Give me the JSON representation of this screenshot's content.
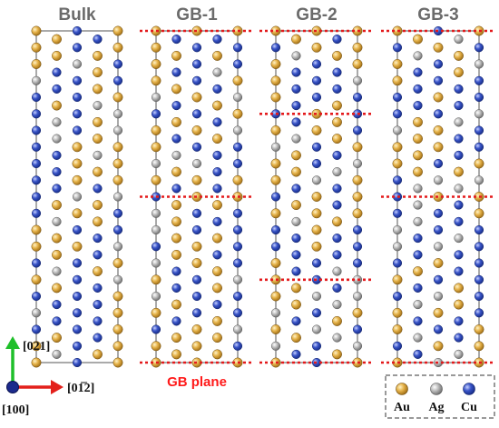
{
  "panels": [
    {
      "title": "Bulk",
      "gb_planes": [],
      "pattern": "mixed"
    },
    {
      "title": "GB-1",
      "gb_planes": [
        "top",
        "middle",
        "bottom"
      ],
      "pattern": "gb1"
    },
    {
      "title": "GB-2",
      "gb_planes": [
        "top",
        "upper-third",
        "lower-third",
        "bottom"
      ],
      "pattern": "gb2"
    },
    {
      "title": "GB-3",
      "gb_planes": [
        "top",
        "middle",
        "bottom"
      ],
      "pattern": "gb3"
    }
  ],
  "gb_label": "GB plane",
  "axes": {
    "vertical": "[021]",
    "horizontal": "[01̅2]",
    "out_of_plane": "[100]"
  },
  "legend": [
    {
      "label": "Au",
      "color": "#d9a33a"
    },
    {
      "label": "Ag",
      "color": "#a9a9a9"
    },
    {
      "label": "Cu",
      "color": "#2f48b8"
    }
  ],
  "colors": {
    "gb_line": "#e31a1c",
    "title": "#6b6b6b",
    "cell_border": "#555555",
    "axis_green": "#1fbf2a",
    "axis_red": "#e3201b",
    "axis_blue": "#1c2a8c",
    "label_red": "#ff1a1a"
  }
}
